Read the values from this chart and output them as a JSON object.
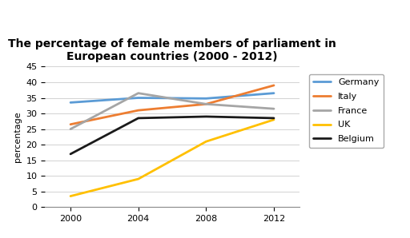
{
  "title": "The percentage of female members of parliament in\nEuropean countries (2000 - 2012)",
  "ylabel": "percentage",
  "years": [
    2000,
    2004,
    2008,
    2012
  ],
  "series": [
    {
      "label": "Germany",
      "color": "#5B9BD5",
      "values": [
        33.5,
        35.0,
        34.8,
        36.5
      ]
    },
    {
      "label": "Italy",
      "color": "#ED7D31",
      "values": [
        26.5,
        31.0,
        33.0,
        39.0
      ]
    },
    {
      "label": "France",
      "color": "#A5A5A5",
      "values": [
        25.0,
        36.5,
        33.0,
        31.5
      ]
    },
    {
      "label": "UK",
      "color": "#FFC000",
      "values": [
        3.5,
        9.0,
        21.0,
        28.0
      ]
    },
    {
      "label": "Belgium",
      "color": "#1A1A1A",
      "values": [
        17.0,
        28.5,
        29.0,
        28.5
      ]
    }
  ],
  "ylim": [
    0,
    45
  ],
  "yticks": [
    0,
    5,
    10,
    15,
    20,
    25,
    30,
    35,
    40,
    45
  ],
  "xticks": [
    2000,
    2004,
    2008,
    2012
  ],
  "xlim": [
    1998.5,
    2013.5
  ],
  "background_color": "#FFFFFF",
  "title_fontsize": 10,
  "axis_fontsize": 8,
  "legend_fontsize": 8,
  "linewidth": 2.0
}
